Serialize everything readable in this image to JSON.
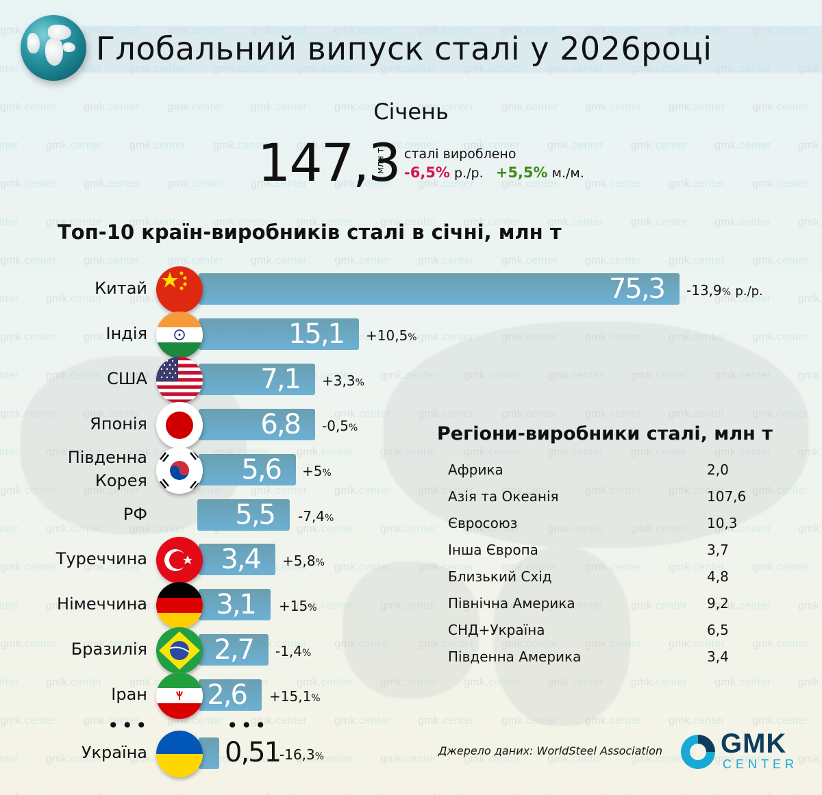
{
  "header": {
    "title": "Глобальний випуск сталі у 2026році",
    "month": "Січень"
  },
  "summary": {
    "total": "147,3",
    "unit": "млн т",
    "caption": "сталі вироблено",
    "yoy_value": "-6,5%",
    "yoy_label": "р./р.",
    "mom_value": "+5,5%",
    "mom_label": "м./м."
  },
  "top10": {
    "title": "Топ-10 країн-виробників сталі в січні, млн т",
    "yoy_suffix": "р./р.",
    "ellipsis": "•••"
  },
  "regions": {
    "title": "Регіони-виробники сталі, млн т",
    "items": [
      {
        "name": "Африка",
        "value": "2,0"
      },
      {
        "name": "Азія та Океанія",
        "value": "107,6"
      },
      {
        "name": "Євросоюз",
        "value": "10,3"
      },
      {
        "name": "Інша Європа",
        "value": "3,7"
      },
      {
        "name": "Близький Схід",
        "value": "4,8"
      },
      {
        "name": "Північна Америка",
        "value": "9,2"
      },
      {
        "name": "СНД+Україна",
        "value": "6,5"
      },
      {
        "name": "Південна Америка",
        "value": "3,4"
      }
    ]
  },
  "footer": {
    "source": "Джерело даних: WorldSteel Association",
    "logo_main": "GMK",
    "logo_sub": "CENTER"
  },
  "colors": {
    "bar": "#6aa8c6",
    "negative": "#d3134d",
    "positive": "#3f8a18",
    "logo_dark": "#0d3d5e",
    "logo_light": "#19a9d6"
  },
  "watermark": "gmk.center",
  "chart_data": [
    {
      "type": "bar",
      "orientation": "horizontal",
      "title": "Топ-10 країн-виробників сталі в січні, млн т",
      "categories": [
        "Китай",
        "Індія",
        "США",
        "Японія",
        "Південна Корея",
        "РФ",
        "Туреччина",
        "Німеччина",
        "Бразилія",
        "Іран",
        "Україна"
      ],
      "values": [
        75.3,
        15.1,
        7.1,
        6.8,
        5.6,
        5.5,
        3.4,
        3.1,
        2.7,
        2.6,
        0.51
      ],
      "value_labels": [
        "75,3",
        "15,1",
        "7,1",
        "6,8",
        "5,6",
        "5,5",
        "3,4",
        "3,1",
        "2,7",
        "2,6",
        "0,51"
      ],
      "yoy_change_pct": [
        -13.9,
        10.5,
        3.3,
        -0.5,
        5,
        -7.4,
        5.8,
        15,
        -1.4,
        15.1,
        -16.3
      ],
      "yoy_change_labels": [
        "-13,9%",
        "+10,5%",
        "+3,3%",
        "-0,5%",
        "+5%",
        "-7,4%",
        "+5,8%",
        "+15%",
        "-1,4%",
        "+15,1%",
        "-16,3%"
      ],
      "xlabel": "",
      "ylabel": "",
      "unit": "млн т",
      "grid": false
    },
    {
      "type": "table",
      "title": "Регіони-виробники сталі, млн т",
      "categories": [
        "Африка",
        "Азія та Океанія",
        "Євросоюз",
        "Інша Європа",
        "Близький Схід",
        "Північна Америка",
        "СНД+Україна",
        "Південна Америка"
      ],
      "values": [
        2.0,
        107.6,
        10.3,
        3.7,
        4.8,
        9.2,
        6.5,
        3.4
      ]
    },
    {
      "type": "table",
      "title": "Глобальний випуск сталі у 2026році — Січень",
      "total_mt": 147.3,
      "yoy_pct": -6.5,
      "mom_pct": 5.5
    }
  ],
  "countries": [
    {
      "name": "Китай",
      "value": "75,3",
      "change": "-13,9",
      "flag": "china-flag-icon"
    },
    {
      "name": "Індія",
      "value": "15,1",
      "change": "+10,5",
      "flag": "india-flag-icon"
    },
    {
      "name": "США",
      "value": "7,1",
      "change": "+3,3",
      "flag": "usa-flag-icon"
    },
    {
      "name": "Японія",
      "value": "6,8",
      "change": "-0,5",
      "flag": "japan-flag-icon"
    },
    {
      "name_line1": "Південна",
      "name_line2": "Корея",
      "value": "5,6",
      "change": "+5",
      "flag": "south-korea-flag-icon"
    },
    {
      "name": "РФ",
      "value": "5,5",
      "change": "-7,4"
    },
    {
      "name": "Туреччина",
      "value": "3,4",
      "change": "+5,8",
      "flag": "turkey-flag-icon"
    },
    {
      "name": "Німеччина",
      "value": "3,1",
      "change": "+15",
      "flag": "germany-flag-icon"
    },
    {
      "name": "Бразилія",
      "value": "2,7",
      "change": "-1,4",
      "flag": "brazil-flag-icon"
    },
    {
      "name": "Іран",
      "value": "2,6",
      "change": "+15,1",
      "flag": "iran-flag-icon"
    },
    {
      "name": "Україна",
      "value": "0,51",
      "change": "-16,3",
      "flag": "ukraine-flag-icon"
    }
  ],
  "percent_sign": "%"
}
